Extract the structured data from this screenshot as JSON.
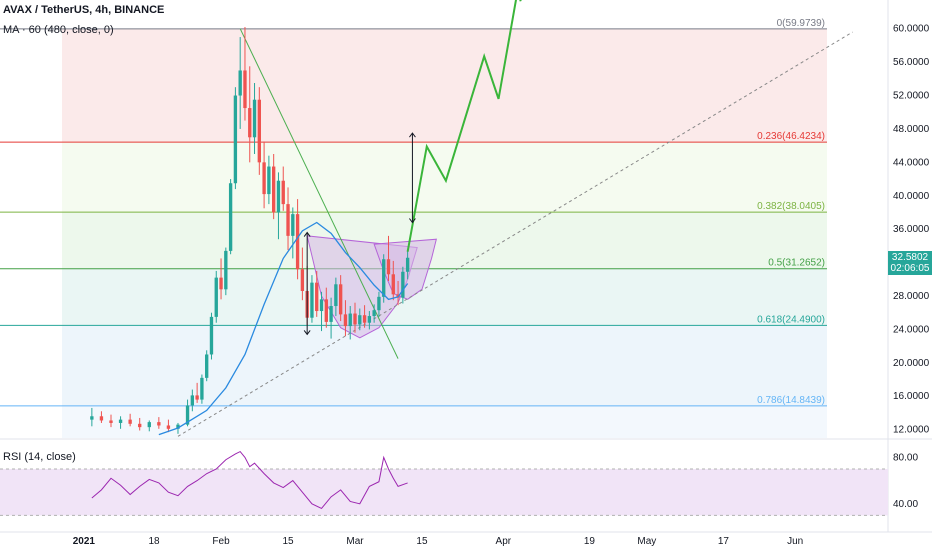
{
  "header": {
    "title": "AVAX / TetherUS, 4h, BINANCE",
    "ma_label": "MA · 60 (480, close, 0)",
    "rsi_label": "RSI (14, close)"
  },
  "price_tag": {
    "price": "32.5802",
    "countdown": "02:06:05",
    "color": "#26a69a"
  },
  "chart_data": [
    {
      "type": "candlestick",
      "title": "AVAX / TetherUS, 4h, BINANCE",
      "y_ticks": [
        "60.0000",
        "56.0000",
        "52.0000",
        "48.0000",
        "44.0000",
        "40.0000",
        "36.0000",
        "32.0000",
        "28.0000",
        "24.0000",
        "20.0000",
        "16.0000",
        "12.0000"
      ],
      "y_tick_values": [
        60,
        56,
        52,
        48,
        44,
        40,
        36,
        32,
        28,
        24,
        20,
        16,
        12
      ],
      "ylim": [
        11,
        62
      ],
      "x_ticks": [
        "2021",
        "18",
        "Feb",
        "15",
        "Mar",
        "15",
        "Apr",
        "19",
        "May",
        "17",
        "Jun"
      ],
      "x_tick_days": [
        0,
        17,
        31,
        45,
        59,
        73,
        90,
        108,
        120,
        136,
        151
      ],
      "xlim": [
        -15.2,
        170.4
      ],
      "candles": [
        {
          "day": 4,
          "o": 13.2,
          "h": 14.6,
          "l": 12.4,
          "c": 13.6
        },
        {
          "day": 6,
          "o": 13.6,
          "h": 14.2,
          "l": 12.8,
          "c": 13.1
        },
        {
          "day": 8,
          "o": 13.1,
          "h": 13.8,
          "l": 12.3,
          "c": 12.8
        },
        {
          "day": 10,
          "o": 12.8,
          "h": 13.6,
          "l": 12.1,
          "c": 13.2
        },
        {
          "day": 12,
          "o": 13.2,
          "h": 13.9,
          "l": 12.4,
          "c": 12.7
        },
        {
          "day": 14,
          "o": 12.7,
          "h": 13.4,
          "l": 11.9,
          "c": 12.3
        },
        {
          "day": 16,
          "o": 12.3,
          "h": 13.1,
          "l": 11.8,
          "c": 12.9
        },
        {
          "day": 18,
          "o": 12.9,
          "h": 13.5,
          "l": 12.1,
          "c": 12.5
        },
        {
          "day": 20,
          "o": 12.5,
          "h": 13.2,
          "l": 11.7,
          "c": 12.1
        },
        {
          "day": 22,
          "o": 12.1,
          "h": 12.8,
          "l": 11.5,
          "c": 12.6
        },
        {
          "day": 24,
          "o": 12.6,
          "h": 15.6,
          "l": 12.4,
          "c": 14.9
        },
        {
          "day": 25,
          "o": 14.9,
          "h": 16.8,
          "l": 14.2,
          "c": 16.1
        },
        {
          "day": 26,
          "o": 16.1,
          "h": 17.6,
          "l": 15.2,
          "c": 15.6
        },
        {
          "day": 27,
          "o": 15.6,
          "h": 18.6,
          "l": 15.1,
          "c": 18.2
        },
        {
          "day": 28,
          "o": 18.2,
          "h": 21.5,
          "l": 17.8,
          "c": 21.0
        },
        {
          "day": 29,
          "o": 21.0,
          "h": 26.0,
          "l": 20.4,
          "c": 25.5
        },
        {
          "day": 30,
          "o": 25.5,
          "h": 31.0,
          "l": 24.8,
          "c": 30.2
        },
        {
          "day": 31,
          "o": 30.2,
          "h": 32.5,
          "l": 27.6,
          "c": 28.8
        },
        {
          "day": 32,
          "o": 28.8,
          "h": 33.8,
          "l": 28.1,
          "c": 33.4
        },
        {
          "day": 33,
          "o": 33.4,
          "h": 42.0,
          "l": 33.0,
          "c": 41.5
        },
        {
          "day": 34,
          "o": 41.5,
          "h": 53.0,
          "l": 40.8,
          "c": 52.0
        },
        {
          "day": 35,
          "o": 52.0,
          "h": 59.0,
          "l": 48.0,
          "c": 55.0
        },
        {
          "day": 36,
          "o": 55.0,
          "h": 60.2,
          "l": 49.0,
          "c": 50.5
        },
        {
          "day": 37,
          "o": 50.5,
          "h": 55.5,
          "l": 44.0,
          "c": 47.0
        },
        {
          "day": 38,
          "o": 47.0,
          "h": 53.5,
          "l": 45.0,
          "c": 51.5
        },
        {
          "day": 39,
          "o": 51.5,
          "h": 53.0,
          "l": 42.5,
          "c": 44.0
        },
        {
          "day": 40,
          "o": 44.0,
          "h": 46.5,
          "l": 38.5,
          "c": 40.2
        },
        {
          "day": 41,
          "o": 40.2,
          "h": 44.8,
          "l": 39.0,
          "c": 43.5
        },
        {
          "day": 42,
          "o": 43.5,
          "h": 45.0,
          "l": 37.2,
          "c": 38.0
        },
        {
          "day": 43,
          "o": 38.0,
          "h": 42.8,
          "l": 34.8,
          "c": 41.8
        },
        {
          "day": 44,
          "o": 41.8,
          "h": 43.5,
          "l": 38.2,
          "c": 39.0
        },
        {
          "day": 45,
          "o": 39.0,
          "h": 41.0,
          "l": 33.5,
          "c": 35.2
        },
        {
          "day": 46,
          "o": 35.2,
          "h": 38.6,
          "l": 32.5,
          "c": 37.8
        },
        {
          "day": 47,
          "o": 37.8,
          "h": 39.6,
          "l": 30.0,
          "c": 31.2
        },
        {
          "day": 48,
          "o": 31.2,
          "h": 33.8,
          "l": 27.5,
          "c": 28.6
        },
        {
          "day": 49,
          "o": 28.6,
          "h": 31.6,
          "l": 24.5,
          "c": 25.4
        },
        {
          "day": 50,
          "o": 25.4,
          "h": 30.5,
          "l": 24.8,
          "c": 29.6
        },
        {
          "day": 51,
          "o": 29.6,
          "h": 31.0,
          "l": 25.5,
          "c": 26.2
        },
        {
          "day": 52,
          "o": 26.2,
          "h": 28.5,
          "l": 23.8,
          "c": 27.6
        },
        {
          "day": 53,
          "o": 27.6,
          "h": 29.0,
          "l": 24.2,
          "c": 24.9
        },
        {
          "day": 54,
          "o": 24.9,
          "h": 27.8,
          "l": 22.9,
          "c": 26.8
        },
        {
          "day": 55,
          "o": 26.8,
          "h": 30.2,
          "l": 25.6,
          "c": 29.4
        },
        {
          "day": 56,
          "o": 29.4,
          "h": 30.5,
          "l": 25.0,
          "c": 25.8
        },
        {
          "day": 57,
          "o": 25.8,
          "h": 27.5,
          "l": 23.2,
          "c": 24.4
        },
        {
          "day": 58,
          "o": 24.4,
          "h": 26.8,
          "l": 22.8,
          "c": 25.9
        },
        {
          "day": 59,
          "o": 25.9,
          "h": 27.2,
          "l": 23.6,
          "c": 24.6
        },
        {
          "day": 60,
          "o": 24.6,
          "h": 26.5,
          "l": 23.9,
          "c": 25.7
        },
        {
          "day": 61,
          "o": 25.7,
          "h": 26.9,
          "l": 24.2,
          "c": 24.8
        },
        {
          "day": 62,
          "o": 24.8,
          "h": 26.2,
          "l": 24.0,
          "c": 25.6
        },
        {
          "day": 63,
          "o": 25.6,
          "h": 27.0,
          "l": 24.8,
          "c": 26.3
        },
        {
          "day": 64,
          "o": 26.3,
          "h": 28.5,
          "l": 25.5,
          "c": 27.9
        },
        {
          "day": 65,
          "o": 27.9,
          "h": 33.0,
          "l": 27.2,
          "c": 32.4
        },
        {
          "day": 66,
          "o": 32.4,
          "h": 35.2,
          "l": 29.8,
          "c": 30.6
        },
        {
          "day": 67,
          "o": 30.6,
          "h": 32.2,
          "l": 27.5,
          "c": 28.2
        },
        {
          "day": 68,
          "o": 28.2,
          "h": 29.8,
          "l": 26.9,
          "c": 27.8
        },
        {
          "day": 69,
          "o": 27.8,
          "h": 31.5,
          "l": 27.1,
          "c": 30.9
        },
        {
          "day": 70,
          "o": 30.9,
          "h": 33.5,
          "l": 30.0,
          "c": 32.58
        }
      ],
      "ma": {
        "label": "MA · 60 (480, close, 0)",
        "color": "#2a8ae0",
        "points": [
          [
            18,
            11.4
          ],
          [
            22,
            12.2
          ],
          [
            28,
            14.3
          ],
          [
            32,
            17.0
          ],
          [
            36,
            21.0
          ],
          [
            40,
            27.0
          ],
          [
            44,
            32.5
          ],
          [
            48,
            35.8
          ],
          [
            51,
            36.8
          ],
          [
            54,
            35.5
          ],
          [
            57,
            33.2
          ],
          [
            60,
            31.4
          ],
          [
            63,
            29.3
          ],
          [
            66,
            27.6
          ],
          [
            68,
            27.9
          ],
          [
            70,
            29.5
          ]
        ]
      },
      "fib_levels": [
        {
          "label": "0(59.9739)",
          "value": 59.9739,
          "color": "#787b86",
          "fill": "#fbeaea"
        },
        {
          "label": "0.236(46.4234)",
          "value": 46.4234,
          "color": "#e53935",
          "fill": "#f5fbf0"
        },
        {
          "label": "0.382(38.0405)",
          "value": 38.0405,
          "color": "#7cb342",
          "fill": "#edf8ec"
        },
        {
          "label": "0.5(31.2652)",
          "value": 31.2652,
          "color": "#43a047",
          "fill": "#eaf6f4"
        },
        {
          "label": "0.618(24.4900)",
          "value": 24.49,
          "color": "#26a69a",
          "fill": "#edf5fb"
        },
        {
          "label": "0.786(14.8439)",
          "value": 14.8439,
          "color": "#64b5f6",
          "fill": "#f2f8fd"
        }
      ],
      "projection_path": [
        [
          70,
          33.3
        ],
        [
          74,
          45.9
        ],
        [
          78,
          41.8
        ],
        [
          86,
          56.7
        ],
        [
          89,
          51.6
        ],
        [
          93,
          64.6
        ]
      ],
      "projection_color": "#3ab53a",
      "dashed_trendline": [
        [
          22,
          11.2
        ],
        [
          163,
          59.6
        ]
      ],
      "descending_trendline": [
        [
          35,
          60.0
        ],
        [
          68,
          20.5
        ]
      ],
      "arrows": [
        {
          "from": [
            49,
            23.4
          ],
          "to": [
            49,
            35.6
          ]
        },
        {
          "from": [
            71,
            36.8
          ],
          "to": [
            71,
            47.5
          ]
        }
      ],
      "pattern": {
        "rect": [
          [
            49,
            35.2
          ],
          [
            87,
            24.5
          ]
        ],
        "cup": [
          [
            49,
            35.2
          ],
          [
            52,
            28.0
          ],
          [
            56,
            24.2
          ],
          [
            60,
            23.0
          ],
          [
            64,
            24.2
          ],
          [
            68,
            27.2
          ],
          [
            70,
            30.0
          ],
          [
            72,
            33.8
          ]
        ],
        "handle": [
          [
            63,
            34.2
          ],
          [
            65,
            31.0
          ],
          [
            67,
            28.3
          ],
          [
            70,
            27.6
          ],
          [
            73,
            28.8
          ],
          [
            75,
            32.5
          ],
          [
            76,
            34.8
          ]
        ],
        "color": "#b565d8",
        "fill": "#d6b7e6"
      }
    },
    {
      "type": "line",
      "title": "RSI (14, close)",
      "y_ticks": [
        "80.00",
        "40.00"
      ],
      "y_tick_values": [
        80,
        40
      ],
      "ylim": [
        20,
        95
      ],
      "band": [
        30,
        70
      ],
      "color": "#9c27b0",
      "x": [
        4,
        6,
        8,
        10,
        12,
        14,
        16,
        18,
        20,
        22,
        24,
        26,
        28,
        30,
        32,
        34,
        35,
        36,
        37,
        38,
        40,
        42,
        44,
        46,
        48,
        50,
        52,
        54,
        56,
        58,
        60,
        62,
        64,
        65,
        66,
        67,
        68,
        70
      ],
      "values": [
        45,
        52,
        62,
        56,
        48,
        55,
        61,
        58,
        50,
        47,
        55,
        60,
        66,
        70,
        78,
        83,
        85,
        80,
        72,
        75,
        66,
        58,
        54,
        60,
        50,
        40,
        36,
        46,
        52,
        42,
        40,
        55,
        59,
        80,
        70,
        62,
        55,
        58
      ]
    }
  ]
}
